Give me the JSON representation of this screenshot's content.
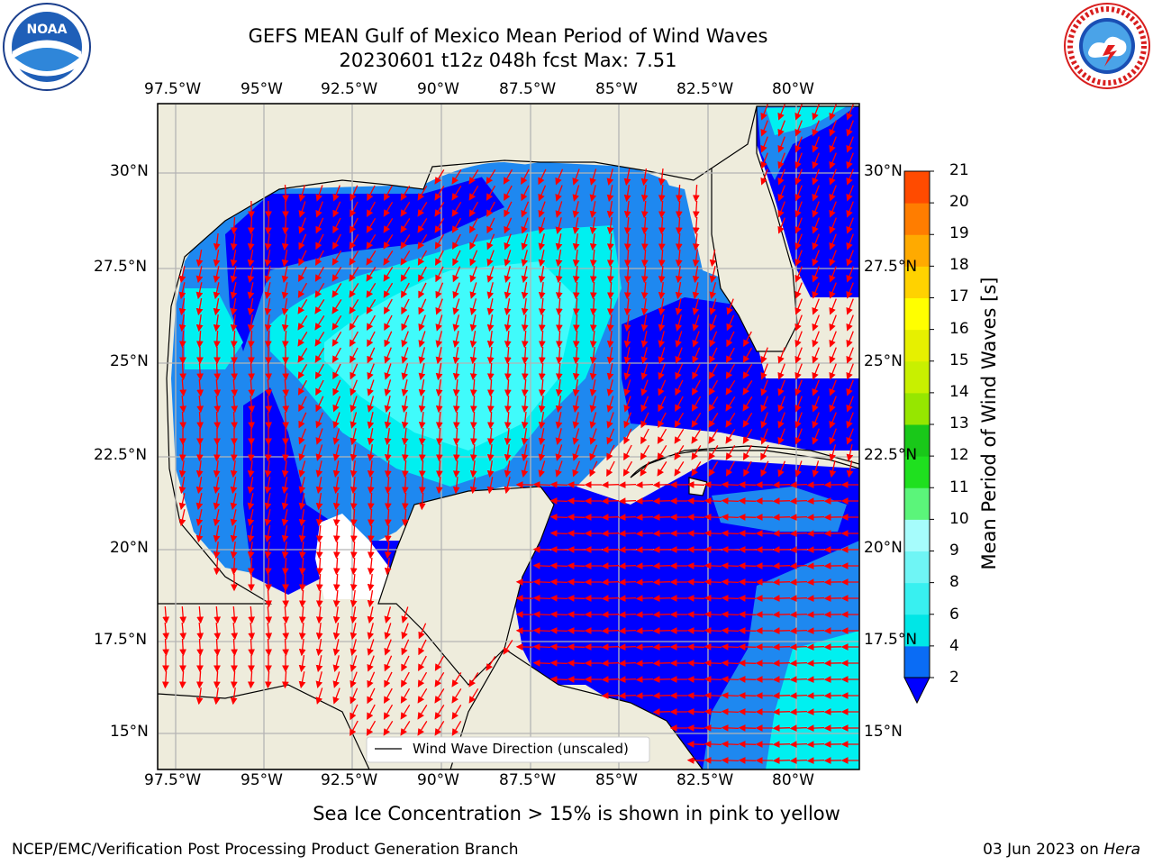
{
  "title": {
    "line1": "GEFS MEAN Gulf of Mexico Mean Period of Wind Waves",
    "line2": "20230601 t12z 048h fcst   Max: 7.51"
  },
  "axes": {
    "lon_labels": [
      "97.5°W",
      "95°W",
      "92.5°W",
      "90°W",
      "87.5°W",
      "85°W",
      "82.5°W",
      "80°W"
    ],
    "lat_labels": [
      "30°N",
      "27.5°N",
      "25°N",
      "22.5°N",
      "20°N",
      "17.5°N",
      "15°N"
    ],
    "lon_range": [
      -98,
      -78
    ],
    "lat_range": [
      14,
      32
    ],
    "grid": true
  },
  "colorbar": {
    "label": "Mean Period of Wind Waves [s]",
    "ticks": [
      "2",
      "4",
      "6",
      "8",
      "9",
      "10",
      "11",
      "12",
      "13",
      "14",
      "15",
      "16",
      "17",
      "18",
      "19",
      "20",
      "21"
    ],
    "colors": [
      "#0a6cf5",
      "#00e6e6",
      "#38f0f0",
      "#6ff5f5",
      "#a6fcfc",
      "#5bf57a",
      "#1fe01f",
      "#19c819",
      "#96e600",
      "#c8f000",
      "#e6f000",
      "#ffff00",
      "#ffd200",
      "#ffaa00",
      "#ff7d00",
      "#ff4b00",
      "#ff1400"
    ],
    "under_color": "#0000ff"
  },
  "legend": {
    "label": "Wind Wave Direction (unscaled)"
  },
  "logos": {
    "noaa": "NOAA",
    "nws": "NATIONAL WEATHER SERVICE"
  },
  "caption": "Sea Ice Concentration > 15% is shown in pink to yellow",
  "footer": {
    "left": "NCEP/EMC/Verification Post Processing Product Generation Branch",
    "date": "03 Jun 2023 on ",
    "machine": "Hera"
  },
  "colors": {
    "land": "#eeecdc",
    "period_lt2": "#0000ff",
    "period_2_4": "#1e88f0",
    "period_4_6": "#00f0f0",
    "period_6_8": "#40fbfb",
    "arrow": "#ff0000",
    "grid": "#b4b4b4"
  }
}
